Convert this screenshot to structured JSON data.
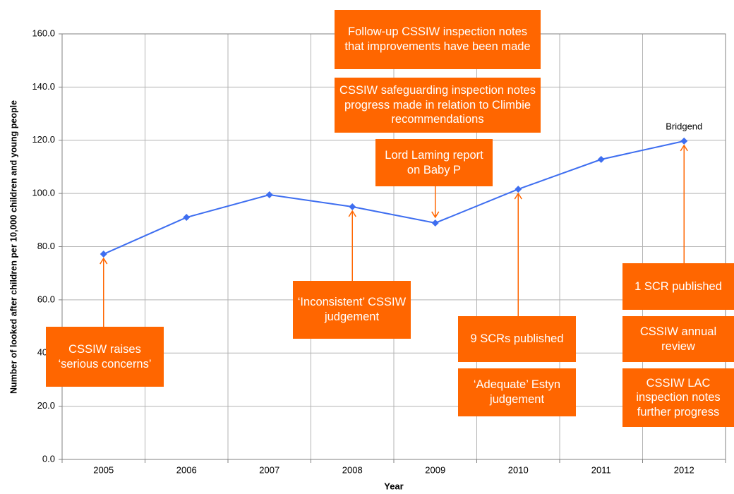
{
  "chart_data": {
    "type": "line",
    "categories": [
      "2005",
      "2006",
      "2007",
      "2008",
      "2009",
      "2010",
      "2011",
      "2012"
    ],
    "series": [
      {
        "name": "Bridgend",
        "color": "#3e6ef0",
        "values": [
          77.2,
          91.0,
          99.5,
          95.0,
          88.9,
          101.6,
          112.8,
          119.7
        ]
      }
    ],
    "ylim": [
      0,
      160
    ],
    "yticks": [
      {
        "value": 0,
        "label": "0.0"
      },
      {
        "value": 20,
        "label": "20.0"
      },
      {
        "value": 40,
        "label": "40.0"
      },
      {
        "value": 60,
        "label": "60.0"
      },
      {
        "value": 80,
        "label": "80.0"
      },
      {
        "value": 100,
        "label": "100.0"
      },
      {
        "value": 120,
        "label": "120.0"
      },
      {
        "value": 140,
        "label": "140.0"
      },
      {
        "value": 160,
        "label": "160.0"
      }
    ],
    "xlabel": "Year",
    "ylabel": "Number of looked after children per 10,000 children and young people",
    "grid": true,
    "annotations": [
      "CSSIW raises ‘serious concerns’",
      "‘Inconsistent’ CSSIW judgement",
      "Lord Laming report on Baby P",
      "CSSIW safeguarding inspection notes progress made in relation to Climbie recommendations",
      "Follow-up CSSIW inspection notes that improvements have been made",
      "9 SCRs published",
      "‘Adequate’ Estyn judgement",
      "1 SCR published",
      "CSSIW annual review",
      "CSSIW LAC inspection notes further progress"
    ],
    "annotation_color": "#ff6600"
  }
}
